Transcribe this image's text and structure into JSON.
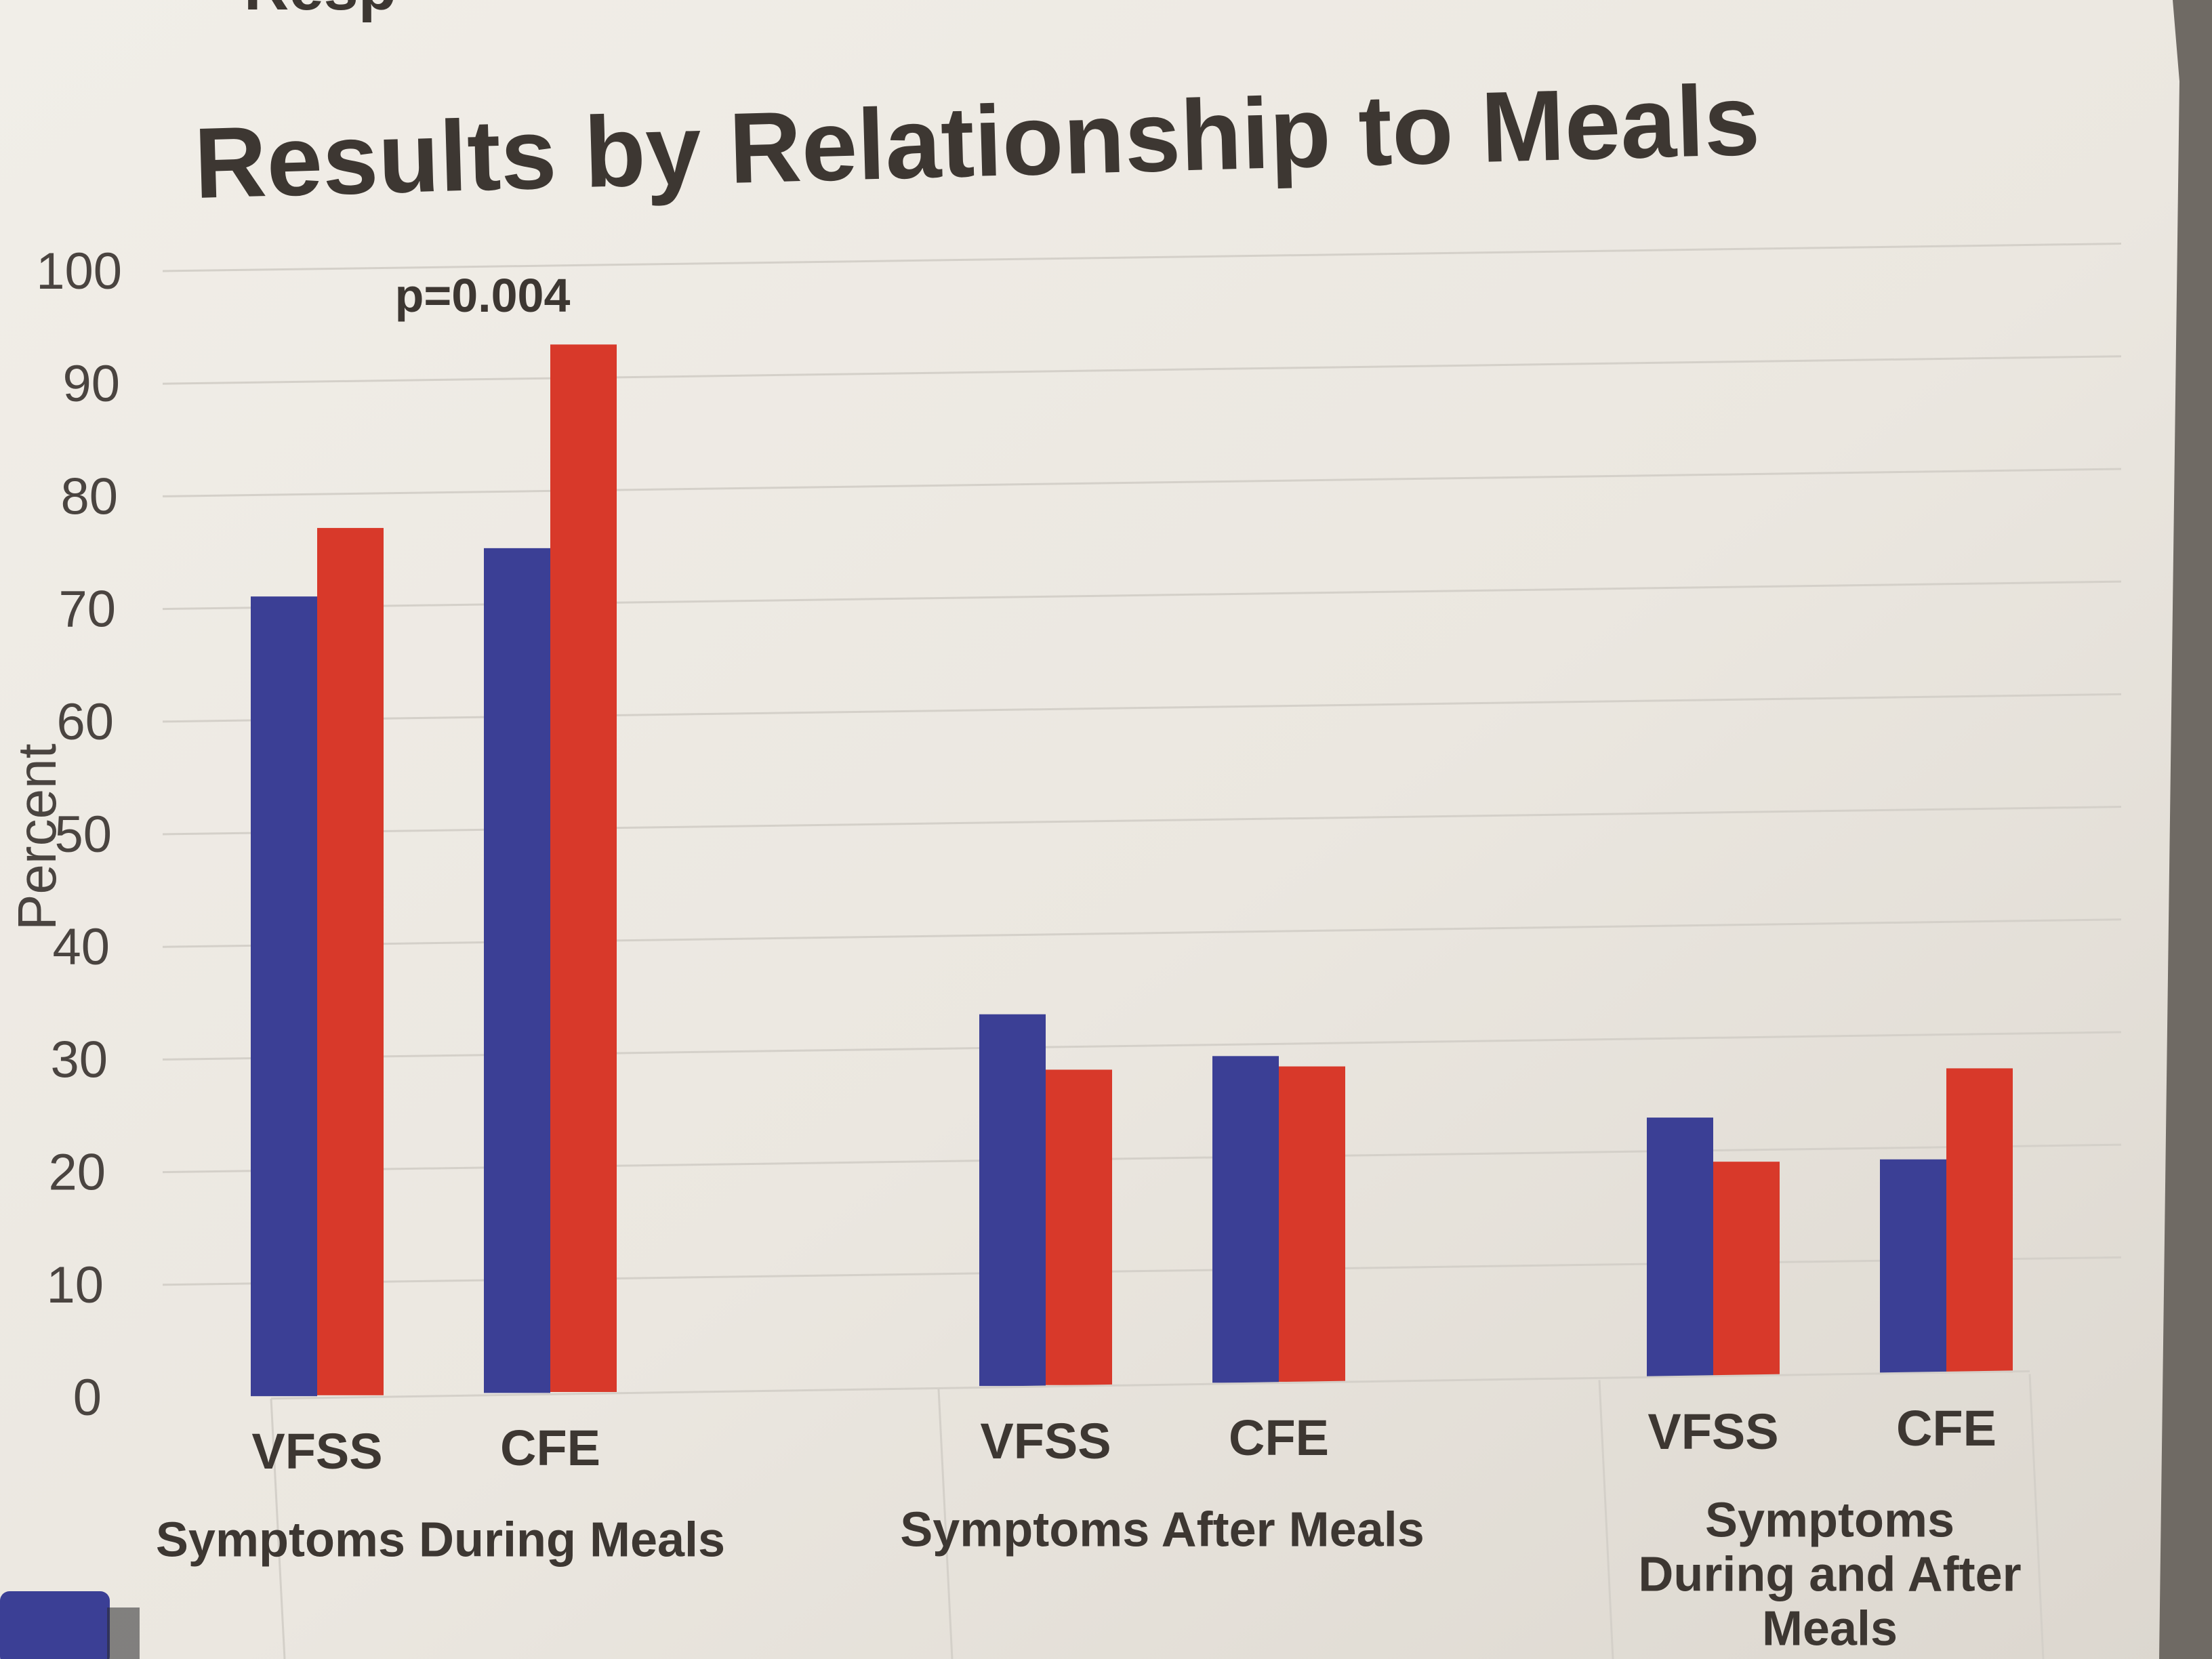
{
  "chart_data": {
    "type": "bar",
    "title": "Results by Relationship to Meals",
    "ylabel": "Percent",
    "xlabel": "",
    "ylim": [
      0,
      100
    ],
    "yticks": [
      0,
      10,
      20,
      30,
      40,
      50,
      60,
      70,
      80,
      90,
      100
    ],
    "grid": true,
    "top_fragment": "Resp",
    "groups": [
      {
        "label_lines": [
          "Symptoms During Meals"
        ],
        "subcategories": [
          {
            "label": "VFSS",
            "values": [
              71,
              77
            ]
          },
          {
            "label": "CFE",
            "values": [
              75,
              93
            ]
          }
        ]
      },
      {
        "label_lines": [
          "Symptoms After Meals"
        ],
        "subcategories": [
          {
            "label": "VFSS",
            "values": [
              33,
              28
            ]
          },
          {
            "label": "CFE",
            "values": [
              29,
              28
            ]
          }
        ]
      },
      {
        "label_lines": [
          "Symptoms",
          "During and After",
          "Meals"
        ],
        "subcategories": [
          {
            "label": "VFSS",
            "values": [
              23,
              19
            ]
          },
          {
            "label": "CFE",
            "values": [
              19,
              27
            ]
          }
        ]
      }
    ],
    "series": [
      {
        "name": "series-blue",
        "color": "#3b3f95"
      },
      {
        "name": "series-red",
        "color": "#d8392a"
      }
    ],
    "annotations": [
      {
        "text": "p=0.004",
        "group": 0,
        "subcategory": 1
      }
    ]
  },
  "colors": {
    "paper": "#ece8e1",
    "text": "#3d3732",
    "axis_text": "#4a4440",
    "grid": "#d4d0c9",
    "background": "#6f6a64",
    "corner_tab": "#3b3f95"
  }
}
